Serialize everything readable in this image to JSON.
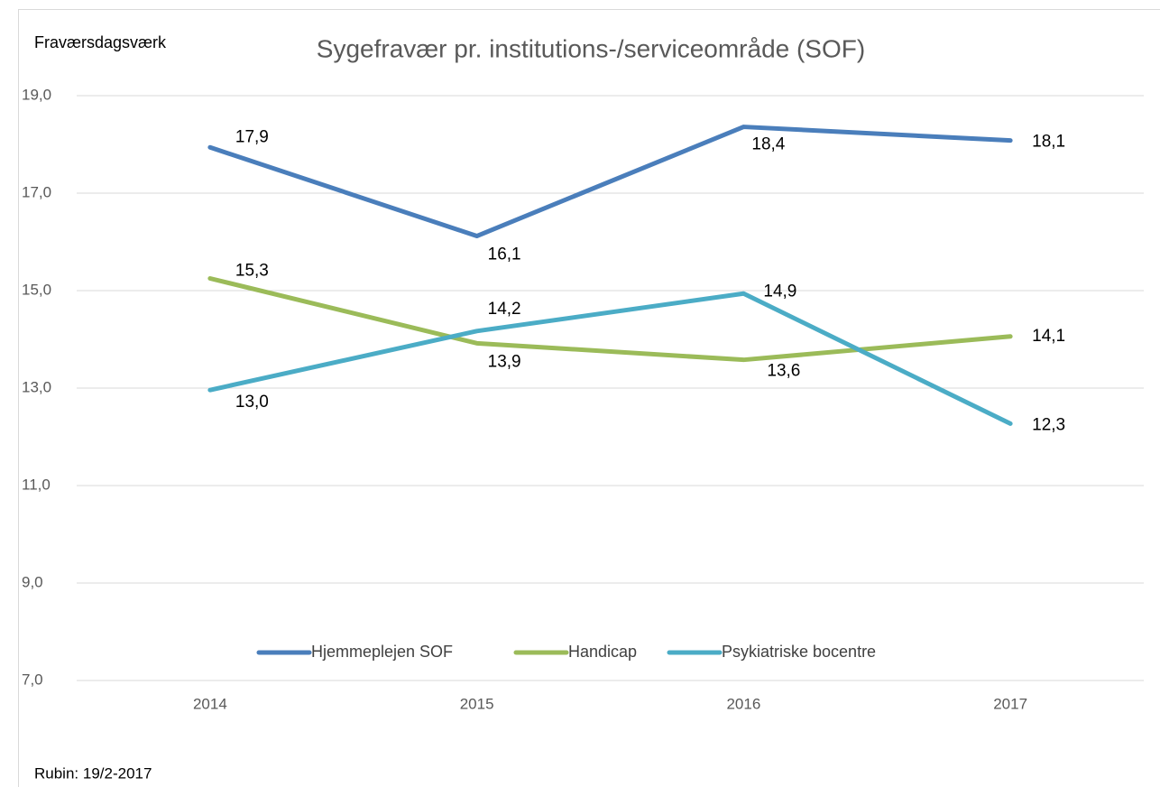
{
  "chart_data": {
    "type": "line",
    "title": "Sygefravær pr. institutions-/serviceområde (SOF)",
    "y_label": "Fraværsdagsværk",
    "footnote": "Rubin: 19/2-2017",
    "categories": [
      "2014",
      "2015",
      "2016",
      "2017"
    ],
    "series": [
      {
        "name": "Hjemmeplejen SOF",
        "color": "#4a7ebb",
        "values": [
          17.94,
          16.12,
          18.36,
          18.08
        ],
        "value_labels": [
          "17,9",
          "16,1",
          "18,4",
          "18,1"
        ]
      },
      {
        "name": "Handicap",
        "color": "#9bbb59",
        "values": [
          15.25,
          13.92,
          13.58,
          14.06
        ],
        "value_labels": [
          "15,3",
          "13,9",
          "13,6",
          "14,1"
        ]
      },
      {
        "name": "Psykiatriske bocentre",
        "color": "#4bacc6",
        "values": [
          12.96,
          14.17,
          14.94,
          12.27
        ],
        "value_labels": [
          "13,0",
          "14,2",
          "14,9",
          "12,3"
        ]
      }
    ],
    "ylim": [
      7,
      19
    ],
    "yticks": [
      {
        "value": 7,
        "label": "7,0"
      },
      {
        "value": 9,
        "label": "9,0"
      },
      {
        "value": 11,
        "label": "11,0"
      },
      {
        "value": 13,
        "label": "13,0"
      },
      {
        "value": 15,
        "label": "15,0"
      },
      {
        "value": 17,
        "label": "17,0"
      },
      {
        "value": 19,
        "label": "19,0"
      }
    ],
    "grid": true,
    "legend": "bottom"
  }
}
